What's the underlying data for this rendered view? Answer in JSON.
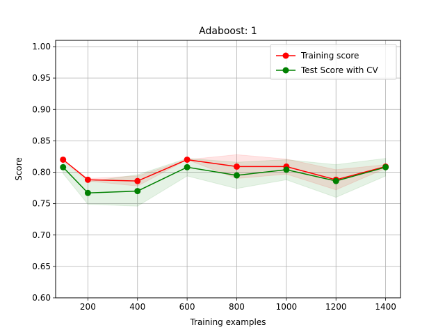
{
  "chart_data": {
    "type": "line",
    "title": "Adaboost: 1",
    "xlabel": "Training examples",
    "ylabel": "Score",
    "xlim": [
      70,
      1460
    ],
    "ylim": [
      0.6,
      1.01
    ],
    "xticks": [
      200,
      400,
      600,
      800,
      1000,
      1200,
      1400
    ],
    "xtick_labels": [
      "200",
      "400",
      "600",
      "800",
      "1000",
      "1200",
      "1400"
    ],
    "yticks": [
      0.6,
      0.65,
      0.7,
      0.75,
      0.8,
      0.85,
      0.9,
      0.95,
      1.0
    ],
    "ytick_labels": [
      "0.60",
      "0.65",
      "0.70",
      "0.75",
      "0.80",
      "0.85",
      "0.90",
      "0.95",
      "1.00"
    ],
    "grid": true,
    "legend_position": "top-right",
    "x": [
      100,
      200,
      400,
      600,
      800,
      1000,
      1200,
      1400
    ],
    "series": [
      {
        "name": "Training score",
        "color": "#ff0000",
        "values": [
          0.82,
          0.788,
          0.786,
          0.82,
          0.809,
          0.809,
          0.788,
          0.809
        ],
        "band_upper": [
          0.82,
          0.79,
          0.794,
          0.82,
          0.828,
          0.821,
          0.804,
          0.812
        ],
        "band_lower": [
          0.82,
          0.786,
          0.778,
          0.82,
          0.79,
          0.797,
          0.772,
          0.806
        ]
      },
      {
        "name": "Test Score with CV",
        "color": "#008000",
        "values": [
          0.808,
          0.767,
          0.77,
          0.808,
          0.795,
          0.804,
          0.786,
          0.808
        ],
        "band_upper": [
          0.818,
          0.785,
          0.796,
          0.822,
          0.816,
          0.82,
          0.812,
          0.822
        ],
        "band_lower": [
          0.798,
          0.749,
          0.746,
          0.794,
          0.774,
          0.788,
          0.76,
          0.794
        ]
      }
    ]
  }
}
